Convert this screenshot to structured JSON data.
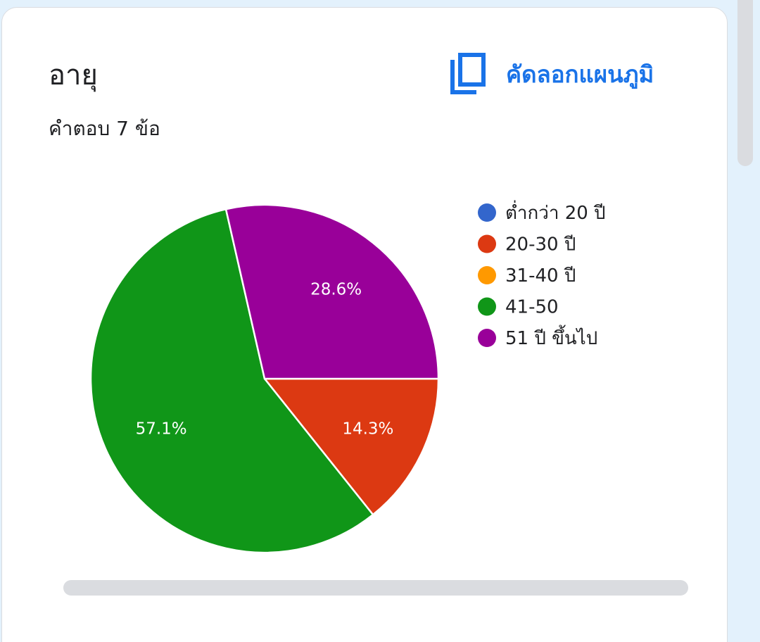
{
  "card": {
    "title": "อายุ",
    "responses": "คำตอบ 7 ข้อ",
    "copy_label": "คัดลอกแผนภูมิ",
    "copy_icon": "copy-icon"
  },
  "colors": {
    "accent": "#1a73e8",
    "page_bg": "#e3f1fc",
    "scrollbar": "#dadce0"
  },
  "chart_data": {
    "type": "pie",
    "categories": [
      "ต่ำกว่า 20 ปี",
      "20-30 ปี",
      "31-40 ปี",
      "41-50",
      "51 ปี ขึ้นไป"
    ],
    "values": [
      0,
      1,
      0,
      4,
      2
    ],
    "percent_labels": [
      "",
      "14.3%",
      "",
      "57.1%",
      "28.6%"
    ],
    "colors": [
      "#3366cc",
      "#dc3912",
      "#ff9900",
      "#109618",
      "#990099"
    ],
    "legend_position": "right"
  }
}
